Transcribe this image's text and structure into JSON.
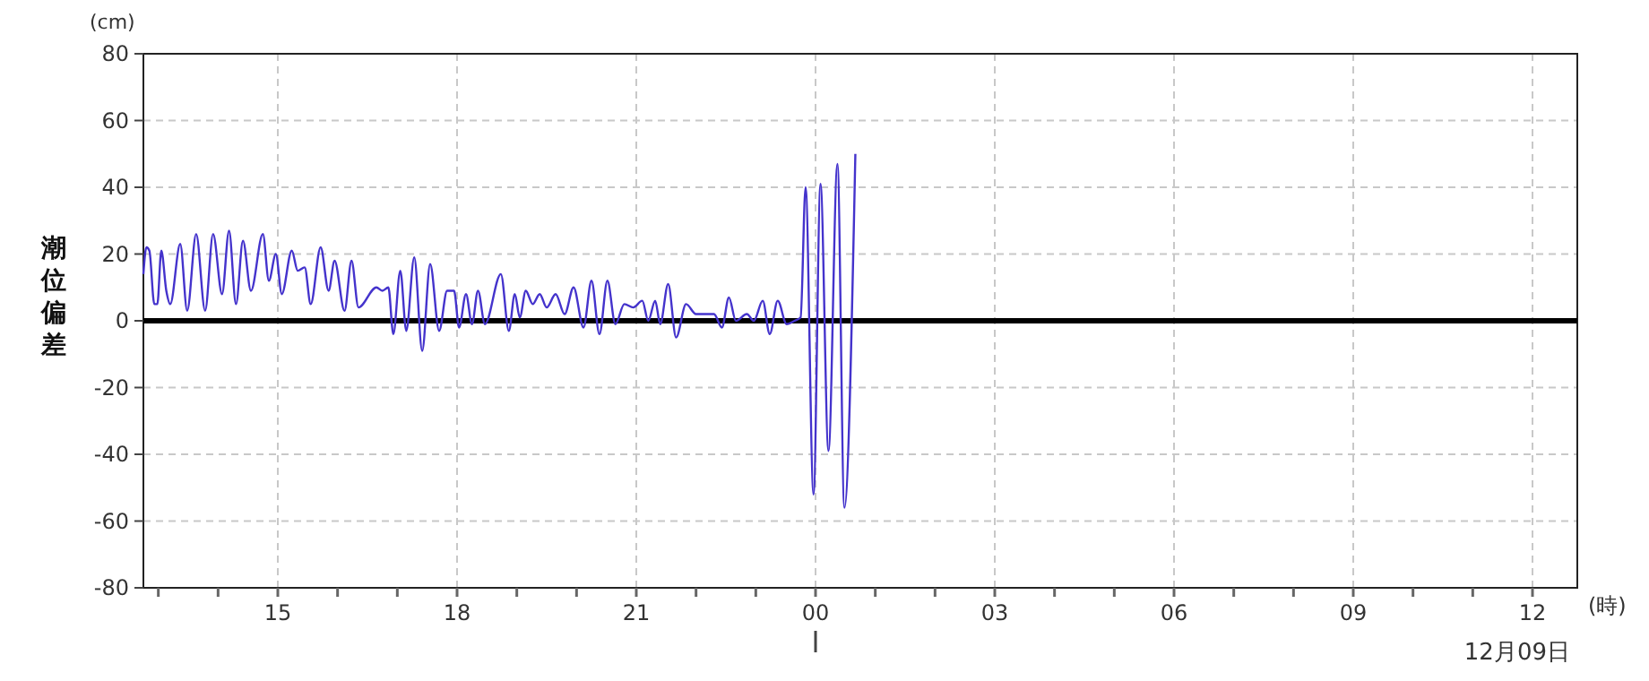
{
  "chart_data": {
    "type": "line",
    "ylabel": "潮位偏差",
    "xlabel": "(時)",
    "annotations": [
      "(cm)",
      "12月09日"
    ],
    "xlim": [
      "--12-08T12:45",
      "--12-09T12:45"
    ],
    "xticks": [
      {
        "value": "--12-08T13:00",
        "label": null
      },
      {
        "value": "--12-08T14:00",
        "label": null
      },
      {
        "value": "--12-08T15:00",
        "label": "15"
      },
      {
        "value": "--12-08T16:00",
        "label": null
      },
      {
        "value": "--12-08T17:00",
        "label": null
      },
      {
        "value": "--12-08T18:00",
        "label": "18"
      },
      {
        "value": "--12-08T19:00",
        "label": null
      },
      {
        "value": "--12-08T20:00",
        "label": null
      },
      {
        "value": "--12-08T21:00",
        "label": "21"
      },
      {
        "value": "--12-08T22:00",
        "label": null
      },
      {
        "value": "--12-08T23:00",
        "label": null
      },
      {
        "value": "--12-09T00:00",
        "label": "00"
      },
      {
        "value": "--12-09T01:00",
        "label": null
      },
      {
        "value": "--12-09T02:00",
        "label": null
      },
      {
        "value": "--12-09T03:00",
        "label": "03"
      },
      {
        "value": "--12-09T04:00",
        "label": null
      },
      {
        "value": "--12-09T05:00",
        "label": null
      },
      {
        "value": "--12-09T06:00",
        "label": "06"
      },
      {
        "value": "--12-09T07:00",
        "label": null
      },
      {
        "value": "--12-09T08:00",
        "label": null
      },
      {
        "value": "--12-09T09:00",
        "label": "09"
      },
      {
        "value": "--12-09T10:00",
        "label": null
      },
      {
        "value": "--12-09T11:00",
        "label": null
      },
      {
        "value": "--12-09T12:00",
        "label": "12"
      }
    ],
    "ylim": [
      -80,
      80
    ],
    "yticks": [
      -80,
      -60,
      -40,
      -20,
      0,
      20,
      40,
      60,
      80
    ],
    "grid": true,
    "marker": "none",
    "line_style": "solid",
    "ref_lines": [
      {
        "axis": "y",
        "value": 0,
        "color": "#000000"
      }
    ],
    "series": [
      {
        "color": "#4433cc",
        "x": [
          "--12-08T12:45",
          "--12-08T12:48",
          "--12-08T12:51",
          "--12-08T12:56",
          "--12-08T12:59",
          "--12-08T13:03",
          "--12-08T13:08",
          "--12-08T13:12",
          "--12-08T13:22",
          "--12-08T13:29",
          "--12-08T13:38",
          "--12-08T13:47",
          "--12-08T13:55",
          "--12-08T14:04",
          "--12-08T14:11",
          "--12-08T14:18",
          "--12-08T14:25",
          "--12-08T14:33",
          "--12-08T14:45",
          "--12-08T14:51",
          "--12-08T14:58",
          "--12-08T15:04",
          "--12-08T15:14",
          "--12-08T15:20",
          "--12-08T15:27",
          "--12-08T15:33",
          "--12-08T15:43",
          "--12-08T15:51",
          "--12-08T15:57",
          "--12-08T16:07",
          "--12-08T16:14",
          "--12-08T16:21",
          "--12-08T16:39",
          "--12-08T16:45",
          "--12-08T16:51",
          "--12-08T16:56",
          "--12-08T17:03",
          "--12-08T17:09",
          "--12-08T17:17",
          "--12-08T17:25",
          "--12-08T17:33",
          "--12-08T17:42",
          "--12-08T17:50",
          "--12-08T17:57",
          "--12-08T18:02",
          "--12-08T18:09",
          "--12-08T18:15",
          "--12-08T18:21",
          "--12-08T18:28",
          "--12-08T18:44",
          "--12-08T18:52",
          "--12-08T18:58",
          "--12-08T19:03",
          "--12-08T19:09",
          "--12-08T19:16",
          "--12-08T19:23",
          "--12-08T19:30",
          "--12-08T19:39",
          "--12-08T19:48",
          "--12-08T19:57",
          "--12-08T20:07",
          "--12-08T20:15",
          "--12-08T20:23",
          "--12-08T20:31",
          "--12-08T20:39",
          "--12-08T20:48",
          "--12-08T20:57",
          "--12-08T21:06",
          "--12-08T21:12",
          "--12-08T21:19",
          "--12-08T21:24",
          "--12-08T21:32",
          "--12-08T21:40",
          "--12-08T21:50",
          "--12-08T22:00",
          "--12-08T22:18",
          "--12-08T22:26",
          "--12-08T22:33",
          "--12-08T22:40",
          "--12-08T22:51",
          "--12-08T22:58",
          "--12-08T23:07",
          "--12-08T23:14",
          "--12-08T23:22",
          "--12-08T23:31",
          "--12-08T23:39",
          "--12-08T23:45",
          "--12-08T23:50",
          "--12-08T23:58",
          "--12-09T00:05",
          "--12-09T00:13",
          "--12-09T00:22",
          "--12-09T00:29",
          "--12-09T00:40"
        ],
        "values": [
          14,
          22,
          21,
          5,
          5,
          21,
          9,
          5,
          23,
          3,
          26,
          3,
          26,
          8,
          27,
          5,
          24,
          9,
          26,
          12,
          20,
          8,
          21,
          15,
          16,
          5,
          22,
          9,
          18,
          3,
          18,
          4,
          10,
          9,
          10,
          -4,
          15,
          -3,
          19,
          -9,
          17,
          -3,
          9,
          9,
          -2,
          8,
          -1,
          9,
          -1,
          14,
          -3,
          8,
          1,
          9,
          5,
          8,
          4,
          8,
          2,
          10,
          -2,
          12,
          -4,
          12,
          -1,
          5,
          4,
          6,
          0,
          6,
          -1,
          11,
          -5,
          5,
          2,
          2,
          -2,
          7,
          0,
          2,
          0,
          6,
          -4,
          6,
          -1,
          0,
          1,
          40,
          -52,
          41,
          -39,
          47,
          -56,
          50
        ]
      }
    ]
  }
}
